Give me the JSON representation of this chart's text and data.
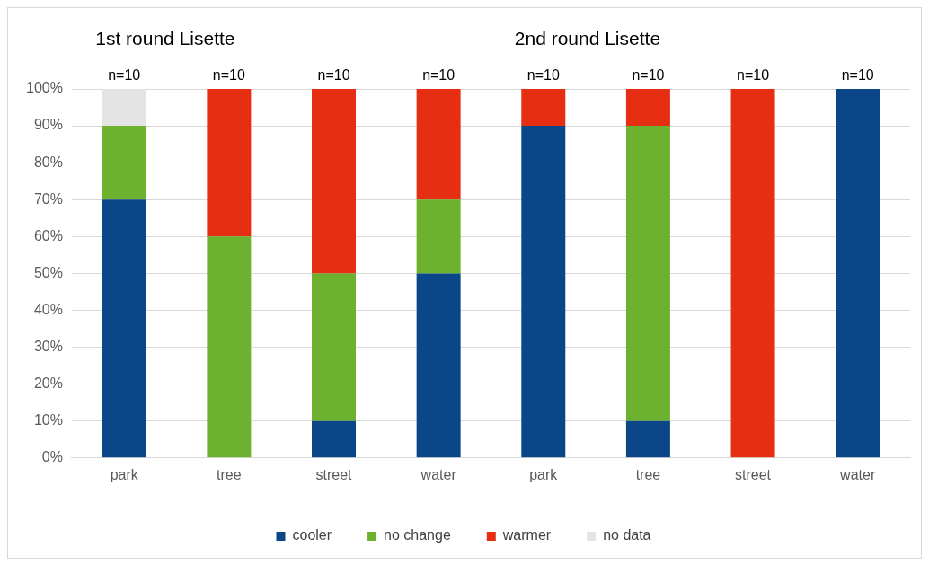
{
  "chart_data": {
    "type": "bar",
    "stacked": true,
    "categories": [
      "park",
      "tree",
      "street",
      "water",
      "park",
      "tree",
      "street",
      "water"
    ],
    "series": [
      {
        "name": "cooler",
        "color": "#0b4689",
        "values": [
          70,
          0,
          10,
          50,
          90,
          10,
          0,
          100
        ]
      },
      {
        "name": "no change",
        "color": "#6db22f",
        "values": [
          20,
          60,
          40,
          20,
          0,
          80,
          0,
          0
        ]
      },
      {
        "name": "warmer",
        "color": "#e62e12",
        "values": [
          0,
          40,
          50,
          30,
          10,
          10,
          100,
          0
        ]
      },
      {
        "name": "no data",
        "color": "#e4e4e4",
        "values": [
          10,
          0,
          0,
          0,
          0,
          0,
          0,
          0
        ]
      }
    ],
    "annotations": [
      "1st round Lisette",
      "2nd round Lisette",
      "n=10",
      "n=10",
      "n=10",
      "n=10",
      "n=10",
      "n=10",
      "n=10",
      "n=10"
    ],
    "ylim": [
      0,
      100
    ],
    "yticks": [
      {
        "value": 0,
        "label": "0%"
      },
      {
        "value": 10,
        "label": "10%"
      },
      {
        "value": 20,
        "label": "20%"
      },
      {
        "value": 30,
        "label": "30%"
      },
      {
        "value": 40,
        "label": "40%"
      },
      {
        "value": 50,
        "label": "50%"
      },
      {
        "value": 60,
        "label": "60%"
      },
      {
        "value": 70,
        "label": "70%"
      },
      {
        "value": 80,
        "label": "80%"
      },
      {
        "value": 90,
        "label": "90%"
      },
      {
        "value": 100,
        "label": "100%"
      }
    ],
    "grid": "y",
    "legend": "bottom"
  }
}
